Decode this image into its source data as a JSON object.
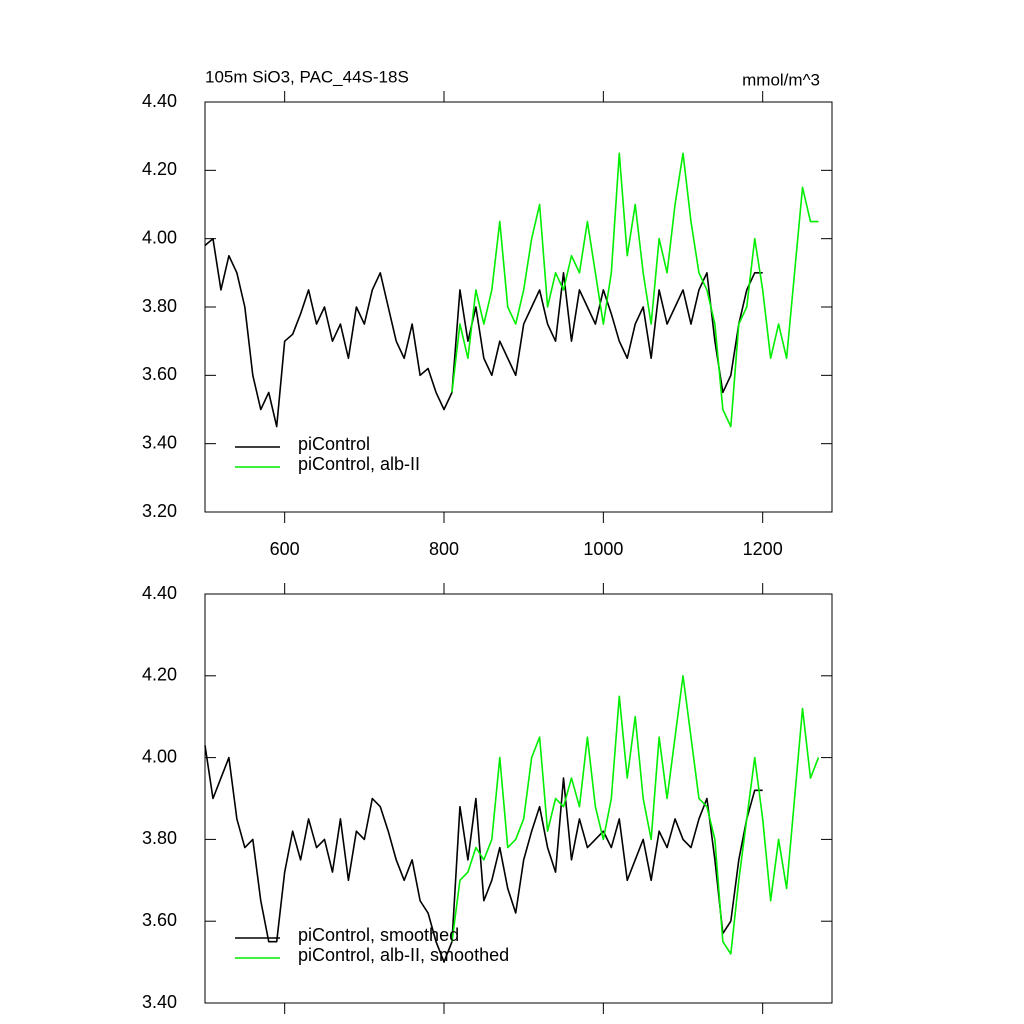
{
  "chart_data": [
    {
      "type": "line",
      "title": "105m SiO3, PAC_44S-18S",
      "units": "mmol/m^3",
      "x": [
        500,
        510,
        520,
        530,
        540,
        550,
        560,
        570,
        580,
        590,
        600,
        610,
        620,
        630,
        640,
        650,
        660,
        670,
        680,
        690,
        700,
        710,
        720,
        730,
        740,
        750,
        760,
        770,
        780,
        790,
        800,
        810,
        820,
        830,
        840,
        850,
        860,
        870,
        880,
        890,
        900,
        910,
        920,
        930,
        940,
        950,
        960,
        970,
        980,
        990,
        1000,
        1010,
        1020,
        1030,
        1040,
        1050,
        1060,
        1070,
        1080,
        1090,
        1100,
        1110,
        1120,
        1130,
        1140,
        1150,
        1160,
        1170,
        1180,
        1190,
        1200,
        1210,
        1220,
        1230,
        1240,
        1250,
        1260,
        1270
      ],
      "series": [
        {
          "name": "piControl",
          "color": "#000000",
          "values": [
            3.98,
            4.0,
            3.85,
            3.95,
            3.9,
            3.8,
            3.6,
            3.5,
            3.55,
            3.45,
            3.7,
            3.72,
            3.78,
            3.85,
            3.75,
            3.8,
            3.7,
            3.75,
            3.65,
            3.8,
            3.75,
            3.85,
            3.9,
            3.8,
            3.7,
            3.65,
            3.75,
            3.6,
            3.62,
            3.55,
            3.5,
            3.55,
            3.85,
            3.7,
            3.8,
            3.65,
            3.6,
            3.7,
            3.65,
            3.6,
            3.75,
            3.8,
            3.85,
            3.75,
            3.7,
            3.9,
            3.7,
            3.85,
            3.8,
            3.75,
            3.85,
            3.78,
            3.7,
            3.65,
            3.75,
            3.8,
            3.65,
            3.85,
            3.75,
            3.8,
            3.85,
            3.75,
            3.85,
            3.9,
            3.7,
            3.55,
            3.6,
            3.75,
            3.85,
            3.9,
            3.9,
            null,
            null,
            null,
            null,
            null,
            null,
            null
          ]
        },
        {
          "name": "piControl, alb-II",
          "color": "#00ee00",
          "values": [
            null,
            null,
            null,
            null,
            null,
            null,
            null,
            null,
            null,
            null,
            null,
            null,
            null,
            null,
            null,
            null,
            null,
            null,
            null,
            null,
            null,
            null,
            null,
            null,
            null,
            null,
            null,
            null,
            null,
            null,
            null,
            3.55,
            3.75,
            3.65,
            3.85,
            3.75,
            3.85,
            4.05,
            3.8,
            3.75,
            3.85,
            4.0,
            4.1,
            3.8,
            3.9,
            3.85,
            3.95,
            3.9,
            4.05,
            3.9,
            3.75,
            3.9,
            4.25,
            3.95,
            4.1,
            3.9,
            3.75,
            4.0,
            3.9,
            4.1,
            4.25,
            4.05,
            3.9,
            3.85,
            3.75,
            3.5,
            3.45,
            3.75,
            3.8,
            4.0,
            3.85,
            3.65,
            3.75,
            3.65,
            3.9,
            4.15,
            4.05,
            4.05
          ]
        }
      ],
      "xlim": [
        500,
        1287
      ],
      "xticks": [
        600,
        800,
        1000,
        1200
      ],
      "ylim": [
        3.2,
        4.4
      ],
      "yticks": [
        {
          "value": 3.2,
          "label": "3.20"
        },
        {
          "value": 3.4,
          "label": "3.40"
        },
        {
          "value": 3.6,
          "label": "3.60"
        },
        {
          "value": 3.8,
          "label": "3.80"
        },
        {
          "value": 4.0,
          "label": "4.00"
        },
        {
          "value": 4.2,
          "label": "4.20"
        },
        {
          "value": 4.4,
          "label": "4.40"
        }
      ],
      "legend": "lower left"
    },
    {
      "type": "line",
      "x": [
        500,
        510,
        520,
        530,
        540,
        550,
        560,
        570,
        580,
        590,
        600,
        610,
        620,
        630,
        640,
        650,
        660,
        670,
        680,
        690,
        700,
        710,
        720,
        730,
        740,
        750,
        760,
        770,
        780,
        790,
        800,
        810,
        820,
        830,
        840,
        850,
        860,
        870,
        880,
        890,
        900,
        910,
        920,
        930,
        940,
        950,
        960,
        970,
        980,
        990,
        1000,
        1010,
        1020,
        1030,
        1040,
        1050,
        1060,
        1070,
        1080,
        1090,
        1100,
        1110,
        1120,
        1130,
        1140,
        1150,
        1160,
        1170,
        1180,
        1190,
        1200,
        1210,
        1220,
        1230,
        1240,
        1250,
        1260,
        1270
      ],
      "series": [
        {
          "name": "piControl, smoothed",
          "color": "#000000",
          "values": [
            4.03,
            3.9,
            3.95,
            4.0,
            3.85,
            3.78,
            3.8,
            3.65,
            3.55,
            3.55,
            3.72,
            3.82,
            3.75,
            3.85,
            3.78,
            3.8,
            3.72,
            3.85,
            3.7,
            3.82,
            3.8,
            3.9,
            3.88,
            3.82,
            3.75,
            3.7,
            3.75,
            3.65,
            3.62,
            3.55,
            3.5,
            3.55,
            3.88,
            3.75,
            3.9,
            3.65,
            3.7,
            3.78,
            3.68,
            3.62,
            3.75,
            3.82,
            3.88,
            3.78,
            3.72,
            3.95,
            3.75,
            3.85,
            3.78,
            3.8,
            3.82,
            3.78,
            3.85,
            3.7,
            3.75,
            3.8,
            3.7,
            3.82,
            3.78,
            3.85,
            3.8,
            3.78,
            3.85,
            3.9,
            3.75,
            3.57,
            3.6,
            3.75,
            3.85,
            3.92,
            3.92,
            null,
            null,
            null,
            null,
            null,
            null,
            null
          ]
        },
        {
          "name": "piControl, alb-II, smoothed",
          "color": "#00ee00",
          "values": [
            null,
            null,
            null,
            null,
            null,
            null,
            null,
            null,
            null,
            null,
            null,
            null,
            null,
            null,
            null,
            null,
            null,
            null,
            null,
            null,
            null,
            null,
            null,
            null,
            null,
            null,
            null,
            null,
            null,
            null,
            null,
            3.55,
            3.7,
            3.72,
            3.78,
            3.75,
            3.8,
            4.0,
            3.78,
            3.8,
            3.85,
            4.0,
            4.05,
            3.82,
            3.9,
            3.88,
            3.95,
            3.88,
            4.05,
            3.88,
            3.8,
            3.9,
            4.15,
            3.95,
            4.1,
            3.9,
            3.8,
            4.05,
            3.9,
            4.05,
            4.2,
            4.05,
            3.9,
            3.88,
            3.8,
            3.55,
            3.52,
            3.7,
            3.85,
            4.0,
            3.85,
            3.65,
            3.8,
            3.68,
            3.9,
            4.12,
            3.95,
            4.0
          ]
        }
      ],
      "xlim": [
        500,
        1287
      ],
      "ylim": [
        3.4,
        4.4
      ],
      "yticks": [
        {
          "value": 3.4,
          "label": "3.40"
        },
        {
          "value": 3.6,
          "label": "3.60"
        },
        {
          "value": 3.8,
          "label": "3.80"
        },
        {
          "value": 4.0,
          "label": "4.00"
        },
        {
          "value": 4.2,
          "label": "4.20"
        },
        {
          "value": 4.4,
          "label": "4.40"
        }
      ],
      "legend": "lower left"
    }
  ]
}
